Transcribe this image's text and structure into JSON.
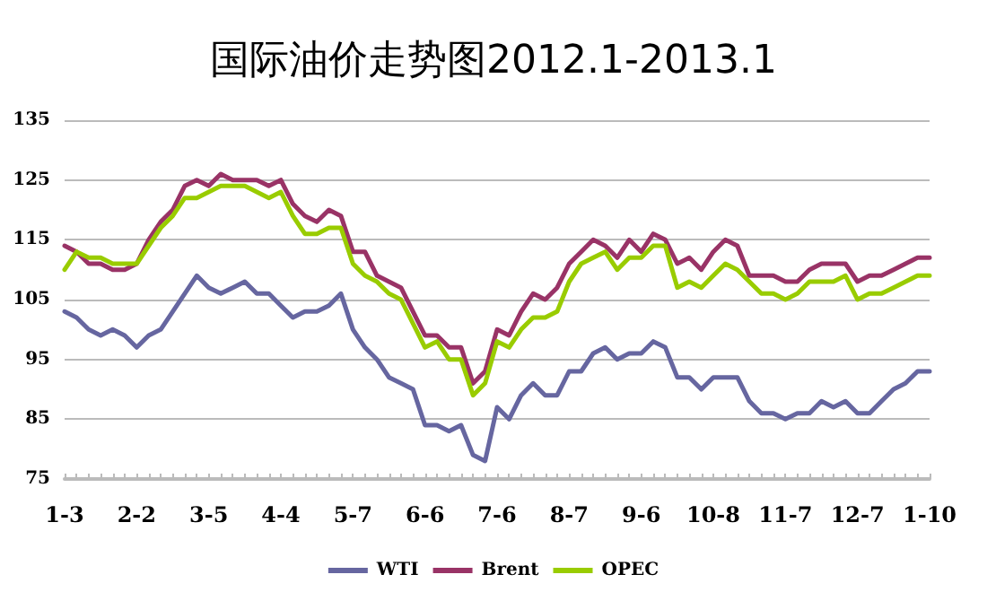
{
  "chart_data": {
    "type": "line",
    "title": "国际油价走势图2012.1-2013.1",
    "categories": [
      "1-3",
      null,
      null,
      null,
      null,
      null,
      "2-2",
      null,
      null,
      null,
      null,
      null,
      "3-5",
      null,
      null,
      null,
      null,
      null,
      "4-4",
      null,
      null,
      null,
      null,
      null,
      "5-7",
      null,
      null,
      null,
      null,
      null,
      "6-6",
      null,
      null,
      null,
      null,
      null,
      "7-6",
      null,
      null,
      null,
      null,
      null,
      "8-7",
      null,
      null,
      null,
      null,
      null,
      "9-6",
      null,
      null,
      null,
      null,
      null,
      "10-8",
      null,
      null,
      null,
      null,
      null,
      "11-7",
      null,
      null,
      null,
      null,
      null,
      "12-7",
      null,
      null,
      null,
      null,
      null,
      "1-10"
    ],
    "series": [
      {
        "name": "WTI",
        "color": "#6666a0",
        "values": [
          103,
          102,
          100,
          99,
          100,
          99,
          97,
          99,
          100,
          103,
          106,
          109,
          107,
          106,
          107,
          108,
          106,
          106,
          104,
          102,
          103,
          103,
          104,
          106,
          100,
          97,
          95,
          92,
          91,
          90,
          84,
          84,
          83,
          84,
          79,
          78,
          87,
          85,
          89,
          91,
          89,
          89,
          93,
          93,
          96,
          97,
          95,
          96,
          96,
          98,
          97,
          92,
          92,
          90,
          92,
          92,
          92,
          88,
          86,
          86,
          85,
          86,
          86,
          88,
          87,
          88,
          86,
          86,
          88,
          90,
          91,
          93,
          93
        ]
      },
      {
        "name": "Brent",
        "color": "#993366",
        "values": [
          114,
          113,
          111,
          111,
          110,
          110,
          111,
          115,
          118,
          120,
          124,
          125,
          124,
          126,
          125,
          125,
          125,
          124,
          125,
          121,
          119,
          118,
          120,
          119,
          113,
          113,
          109,
          108,
          107,
          103,
          99,
          99,
          97,
          97,
          91,
          93,
          100,
          99,
          103,
          106,
          105,
          107,
          111,
          113,
          115,
          114,
          112,
          115,
          113,
          116,
          115,
          111,
          112,
          110,
          113,
          115,
          114,
          109,
          109,
          109,
          108,
          108,
          110,
          111,
          111,
          111,
          108,
          109,
          109,
          110,
          111,
          112,
          112
        ]
      },
      {
        "name": "OPEC",
        "color": "#99cc00",
        "values": [
          110,
          113,
          112,
          112,
          111,
          111,
          111,
          114,
          117,
          119,
          122,
          122,
          123,
          124,
          124,
          124,
          123,
          122,
          123,
          119,
          116,
          116,
          117,
          117,
          111,
          109,
          108,
          106,
          105,
          101,
          97,
          98,
          95,
          95,
          89,
          91,
          98,
          97,
          100,
          102,
          102,
          103,
          108,
          111,
          112,
          113,
          110,
          112,
          112,
          114,
          114,
          107,
          108,
          107,
          109,
          111,
          110,
          108,
          106,
          106,
          105,
          106,
          108,
          108,
          108,
          109,
          105,
          106,
          106,
          107,
          108,
          109,
          109
        ]
      }
    ],
    "ylim": [
      75,
      135
    ],
    "yticks": [
      75,
      85,
      95,
      105,
      115,
      125,
      135
    ],
    "grid": "y",
    "legend": "bottom",
    "marker": "none",
    "line_style": "solid"
  }
}
